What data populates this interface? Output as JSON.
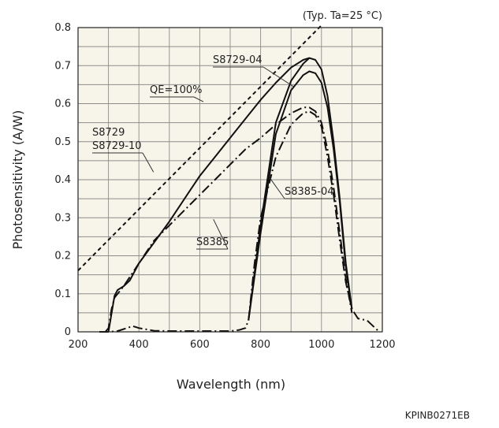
{
  "chart_data": {
    "type": "line",
    "condition_note": "(Typ. Ta=25 °C)",
    "xlabel": "Wavelength (nm)",
    "ylabel": "Photosensitivity (A/W)",
    "xlim": [
      200,
      1200
    ],
    "ylim": [
      0,
      0.8
    ],
    "x_ticks": [
      200,
      400,
      600,
      800,
      1000,
      1200
    ],
    "y_ticks": [
      {
        "v": 0,
        "label": "0"
      },
      {
        "v": 0.1,
        "label": "0.1"
      },
      {
        "v": 0.2,
        "label": "0.2"
      },
      {
        "v": 0.3,
        "label": "0.3"
      },
      {
        "v": 0.4,
        "label": "0.4"
      },
      {
        "v": 0.5,
        "label": "0.5"
      },
      {
        "v": 0.6,
        "label": "0.6"
      },
      {
        "v": 0.7,
        "label": "0.7"
      },
      {
        "v": 0.8,
        "label": "0.8"
      }
    ],
    "grid": true,
    "background": "#f7f5ea",
    "series": [
      {
        "key": "qe100",
        "style": "dashed",
        "x": [
          200,
          1000
        ],
        "y": [
          0.161,
          0.806
        ]
      },
      {
        "key": "s8729_04",
        "style": "solid",
        "x": [
          760,
          800,
          850,
          900,
          940,
          960,
          980,
          1000,
          1020,
          1040,
          1060,
          1080,
          1100
        ],
        "y": [
          0.03,
          0.28,
          0.55,
          0.66,
          0.705,
          0.72,
          0.715,
          0.69,
          0.62,
          0.5,
          0.35,
          0.18,
          0.06
        ]
      },
      {
        "key": "s8729",
        "style": "solid",
        "x": [
          760,
          800,
          850,
          900,
          940,
          960,
          980,
          1000,
          1020,
          1040,
          1060,
          1080,
          1100
        ],
        "y": [
          0.03,
          0.26,
          0.52,
          0.635,
          0.675,
          0.685,
          0.68,
          0.655,
          0.59,
          0.48,
          0.34,
          0.17,
          0.06
        ]
      },
      {
        "key": "s8729_uv",
        "style": "solid",
        "x": [
          300,
          320,
          330,
          350,
          370,
          400,
          450,
          500,
          550,
          600,
          650,
          700,
          750,
          800,
          850,
          900,
          940,
          960
        ],
        "y": [
          0.0,
          0.095,
          0.11,
          0.12,
          0.135,
          0.18,
          0.235,
          0.29,
          0.35,
          0.41,
          0.46,
          0.51,
          0.56,
          0.61,
          0.655,
          0.695,
          0.715,
          0.72
        ]
      },
      {
        "key": "s8385",
        "style": "dashdot",
        "x": [
          290,
          300,
          310,
          320,
          330,
          350,
          400,
          450,
          500,
          550,
          600,
          650,
          700,
          750,
          800,
          850,
          900,
          940,
          960,
          980,
          1000,
          1020,
          1040,
          1060,
          1080,
          1100
        ],
        "y": [
          0.0,
          0.01,
          0.06,
          0.09,
          0.1,
          0.12,
          0.18,
          0.24,
          0.28,
          0.32,
          0.36,
          0.4,
          0.44,
          0.48,
          0.51,
          0.545,
          0.575,
          0.59,
          0.59,
          0.58,
          0.55,
          0.48,
          0.38,
          0.26,
          0.14,
          0.05
        ]
      },
      {
        "key": "s8385_04",
        "style": "dashdot",
        "x": [
          270,
          300,
          330,
          360,
          380,
          400,
          450,
          500,
          550,
          600,
          650,
          700,
          730,
          750,
          760,
          780,
          800,
          850,
          900,
          940,
          960,
          980,
          1000,
          1020,
          1040,
          1060,
          1080,
          1100,
          1120,
          1150,
          1170,
          1190
        ],
        "y": [
          0.0,
          0.0,
          0.002,
          0.01,
          0.015,
          0.01,
          0.003,
          0.002,
          0.002,
          0.002,
          0.002,
          0.002,
          0.005,
          0.01,
          0.03,
          0.18,
          0.3,
          0.46,
          0.545,
          0.575,
          0.58,
          0.57,
          0.54,
          0.46,
          0.36,
          0.24,
          0.13,
          0.06,
          0.035,
          0.03,
          0.015,
          0.0
        ]
      }
    ],
    "annotations": [
      {
        "key": "qe100",
        "label": "QE=100%",
        "at": [
          612,
          0.605
        ]
      },
      {
        "key": "s8729_04",
        "label": "S8729-04",
        "at": [
          908,
          0.645
        ]
      },
      {
        "key": "s8729",
        "label": "S8729\nS8729-10",
        "at": [
          448,
          0.42
        ]
      },
      {
        "key": "s8385",
        "label": "S8385",
        "at": [
          645,
          0.296
        ]
      },
      {
        "key": "s8385_04",
        "label": "S8385-04",
        "at": [
          830,
          0.405
        ]
      }
    ]
  },
  "footer_code": "KPINB0271EB"
}
